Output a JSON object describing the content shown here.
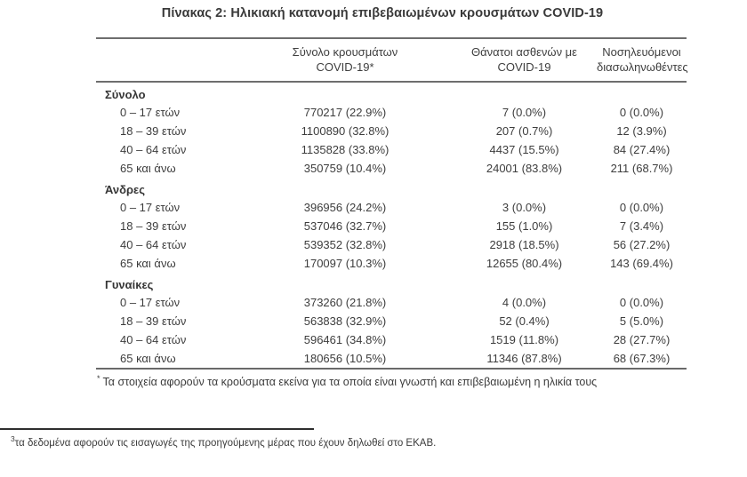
{
  "title": "Πίνακας 2: Ηλικιακή κατανομή επιβεβαιωμένων κρουσμάτων COVID-19",
  "table": {
    "columns": [
      {
        "line1": "Σύνολο κρουσμάτων",
        "line2": "COVID-19*"
      },
      {
        "line1": "Θάνατοι ασθενών με",
        "line2": "COVID-19"
      },
      {
        "line1": "Νοσηλευόμενοι",
        "line2": "διασωληνωθέντες"
      }
    ],
    "sections": [
      {
        "label": "Σύνολο",
        "rows": [
          {
            "age": "0 – 17 ετών",
            "cases": "770217 (22.9%)",
            "deaths": "7 (0.0%)",
            "intubated": "0 (0.0%)"
          },
          {
            "age": "18 – 39 ετών",
            "cases": "1100890 (32.8%)",
            "deaths": "207 (0.7%)",
            "intubated": "12 (3.9%)"
          },
          {
            "age": "40 – 64 ετών",
            "cases": "1135828 (33.8%)",
            "deaths": "4437 (15.5%)",
            "intubated": "84 (27.4%)"
          },
          {
            "age": "65 και άνω",
            "cases": "350759 (10.4%)",
            "deaths": "24001 (83.8%)",
            "intubated": "211 (68.7%)"
          }
        ]
      },
      {
        "label": "Άνδρες",
        "rows": [
          {
            "age": "0 – 17 ετών",
            "cases": "396956 (24.2%)",
            "deaths": "3 (0.0%)",
            "intubated": "0 (0.0%)"
          },
          {
            "age": "18 – 39 ετών",
            "cases": "537046 (32.7%)",
            "deaths": "155 (1.0%)",
            "intubated": "7 (3.4%)"
          },
          {
            "age": "40 – 64 ετών",
            "cases": "539352 (32.8%)",
            "deaths": "2918 (18.5%)",
            "intubated": "56 (27.2%)"
          },
          {
            "age": "65 και άνω",
            "cases": "170097 (10.3%)",
            "deaths": "12655 (80.4%)",
            "intubated": "143 (69.4%)"
          }
        ]
      },
      {
        "label": "Γυναίκες",
        "rows": [
          {
            "age": "0 – 17 ετών",
            "cases": "373260 (21.8%)",
            "deaths": "4 (0.0%)",
            "intubated": "0 (0.0%)"
          },
          {
            "age": "18 – 39 ετών",
            "cases": "563838 (32.9%)",
            "deaths": "52 (0.4%)",
            "intubated": "5 (5.0%)"
          },
          {
            "age": "40 – 64 ετών",
            "cases": "596461 (34.8%)",
            "deaths": "1519 (11.8%)",
            "intubated": "28 (27.7%)"
          },
          {
            "age": "65 και άνω",
            "cases": "180656 (10.5%)",
            "deaths": "11346 (87.8%)",
            "intubated": "68 (67.3%)"
          }
        ]
      }
    ],
    "footnote_marker": "*",
    "footnote": "Τα στοιχεία αφορούν τα κρούσματα εκείνα για τα οποία είναι γνωστή και επιβεβαιωμένη η ηλικία τους"
  },
  "page_footnote": {
    "marker": "3",
    "text": "τα δεδομένα αφορούν τις εισαγωγές της προηγούμενης μέρας που έχουν δηλωθεί στο ΕΚΑΒ."
  },
  "colors": {
    "text": "#3d3d3d",
    "table_border": "#6e6e6e",
    "rule": "#2e2e2e",
    "background": "#ffffff"
  }
}
